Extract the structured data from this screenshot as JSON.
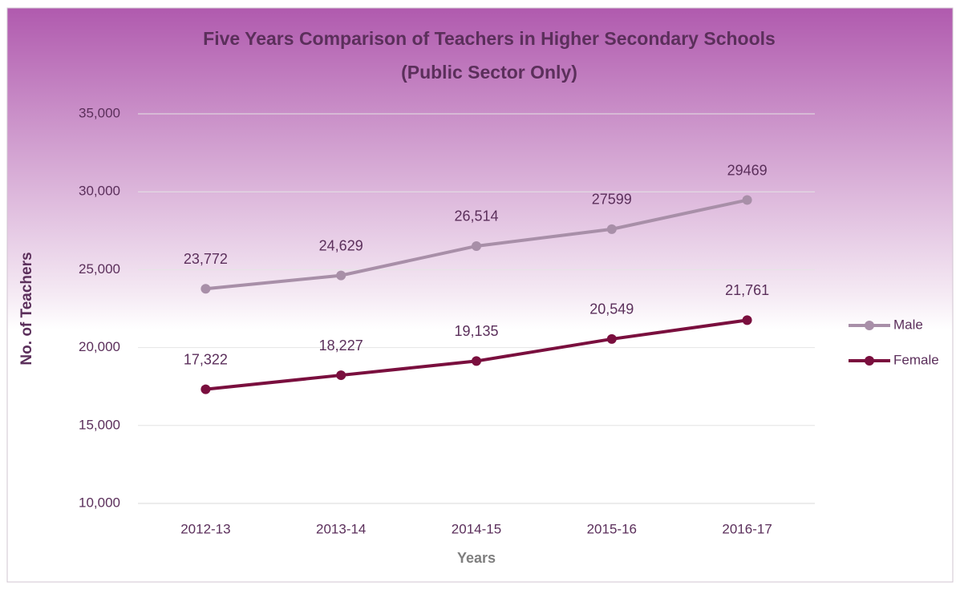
{
  "chart_data": {
    "type": "line",
    "title": [
      "Five Years Comparison of Teachers in Higher Secondary Schools",
      "(Public Sector Only)"
    ],
    "x_label": "Years",
    "y_label": "No. of Teachers",
    "categories": [
      "2012-13",
      "2013-14",
      "2014-15",
      "2015-16",
      "2016-17"
    ],
    "series": [
      {
        "name": "Male",
        "color": "#a88fa8",
        "values": [
          23772,
          24629,
          26514,
          27599,
          29469
        ],
        "value_labels": [
          "23,772",
          "24,629",
          "26,514",
          "27599",
          "29469"
        ]
      },
      {
        "name": "Female",
        "color": "#7a0f3e",
        "values": [
          17322,
          18227,
          19135,
          20549,
          21761
        ],
        "value_labels": [
          "17,322",
          "18,227",
          "19,135",
          "20,549",
          "21,761"
        ]
      }
    ],
    "ylim": [
      10000,
      35000
    ],
    "yticks": [
      {
        "value": 10000,
        "label": "10,000"
      },
      {
        "value": 15000,
        "label": "15,000"
      },
      {
        "value": 20000,
        "label": "20,000"
      },
      {
        "value": 25000,
        "label": "25,000"
      },
      {
        "value": 30000,
        "label": "30,000"
      },
      {
        "value": 35000,
        "label": "35,000"
      }
    ],
    "grid": true,
    "legend": "right"
  }
}
